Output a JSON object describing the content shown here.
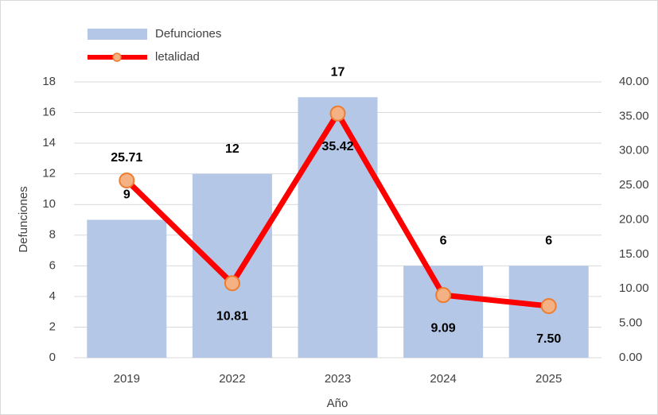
{
  "chart_data": {
    "type": "bar-line",
    "categories": [
      "2019",
      "2022",
      "2023",
      "2024",
      "2025"
    ],
    "series": [
      {
        "name": "Defunciones",
        "type": "bar",
        "color": "#b4c7e7",
        "values": [
          9,
          12,
          17,
          6,
          6
        ]
      },
      {
        "name": "letalidad",
        "type": "line",
        "axis": "y2",
        "color": "#ff0000",
        "marker_color": "#f4b183",
        "values": [
          25.71,
          10.81,
          35.42,
          9.09,
          7.5
        ],
        "value_labels": [
          "25.71",
          "10.81",
          "35.42",
          "9.09",
          "7.50"
        ]
      }
    ],
    "ylabel": "Defunciones",
    "xlabel": "Año",
    "ylim": [
      0,
      18
    ],
    "yticks": [
      0,
      2,
      4,
      6,
      8,
      10,
      12,
      14,
      16,
      18
    ],
    "y2lim": [
      0,
      40
    ],
    "y2ticks": [
      {
        "value": 0,
        "label": "0.00"
      },
      {
        "value": 5,
        "label": "5.00"
      },
      {
        "value": 10,
        "label": "10.00"
      },
      {
        "value": 15,
        "label": "15.00"
      },
      {
        "value": 20,
        "label": "20.00"
      },
      {
        "value": 25,
        "label": "25.00"
      },
      {
        "value": 30,
        "label": "30.00"
      },
      {
        "value": 35,
        "label": "35.00"
      },
      {
        "value": 40,
        "label": "40.00"
      }
    ],
    "grid": true,
    "legend": "top-left"
  }
}
